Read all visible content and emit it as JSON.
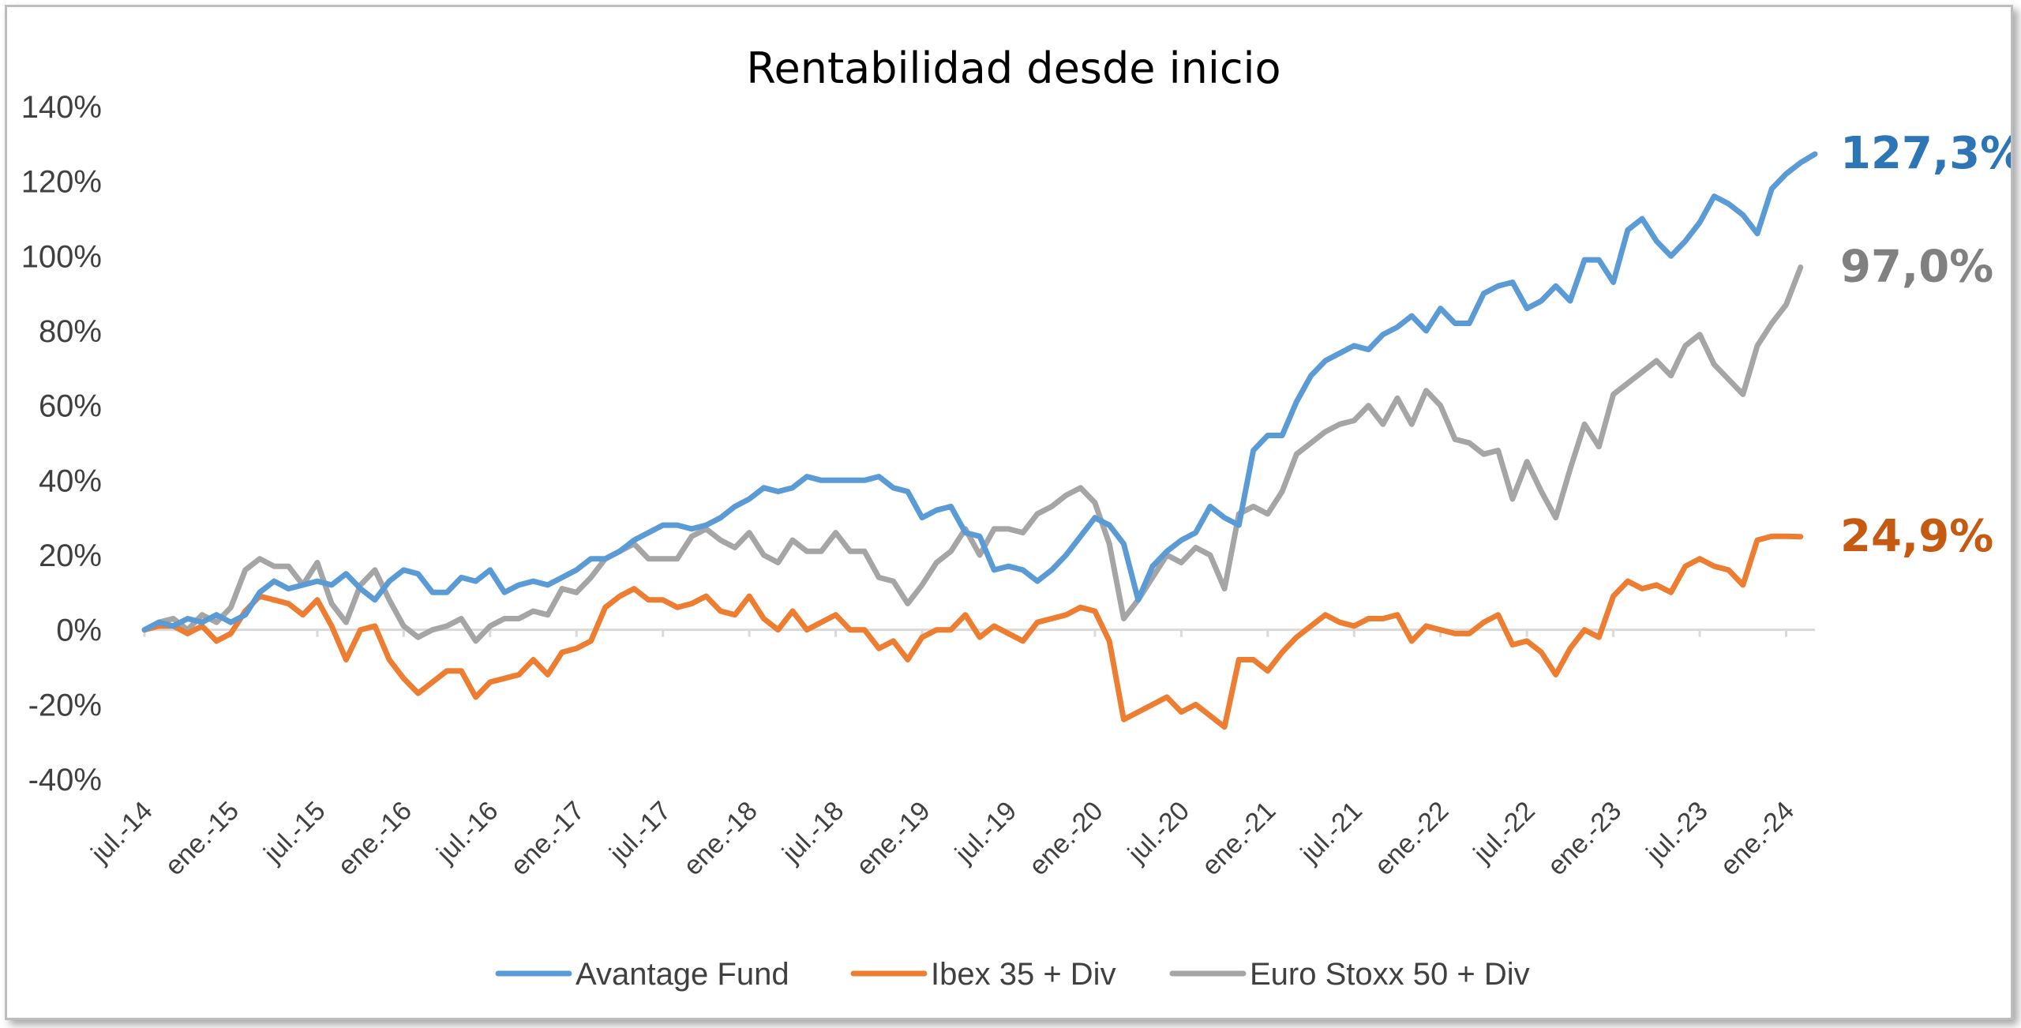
{
  "chart_data": {
    "type": "line",
    "title": "Rentabilidad desde inicio",
    "xlabel": "",
    "ylabel": "",
    "ylim": [
      -40,
      140
    ],
    "y_ticks": [
      "140%",
      "120%",
      "100%",
      "80%",
      "60%",
      "40%",
      "20%",
      "0%",
      "-20%",
      "-40%"
    ],
    "y_tick_values": [
      140,
      120,
      100,
      80,
      60,
      40,
      20,
      0,
      -20,
      -40
    ],
    "x_ticks": [
      "jul.-14",
      "ene.-15",
      "jul.-15",
      "ene.-16",
      "jul.-16",
      "ene.-17",
      "jul.-17",
      "ene.-18",
      "jul.-18",
      "ene.-19",
      "jul.-19",
      "ene.-20",
      "jul.-20",
      "ene.-21",
      "jul.-21",
      "ene.-22",
      "jul.-22",
      "ene.-23",
      "jul.-23",
      "ene.-24"
    ],
    "x_tick_index": [
      0,
      6,
      12,
      18,
      24,
      30,
      36,
      42,
      48,
      54,
      60,
      66,
      72,
      78,
      84,
      90,
      96,
      102,
      108,
      114
    ],
    "x_start": "jul.-14",
    "x_end": "mar.-24",
    "grid": false,
    "legend_position": "bottom",
    "series": [
      {
        "name": "Avantage Fund",
        "color": "#5b9bd5",
        "end_label": "127,3%",
        "end_label_color": "#2e75b6",
        "values": [
          0,
          2,
          1,
          3,
          2,
          4,
          2,
          4,
          10,
          13,
          11,
          12,
          13,
          12,
          15,
          11,
          8,
          13,
          16,
          15,
          10,
          10,
          14,
          13,
          16,
          10,
          12,
          13,
          12,
          14,
          16,
          19,
          19,
          21,
          24,
          26,
          28,
          28,
          27,
          28,
          30,
          33,
          35,
          38,
          37,
          38,
          41,
          40,
          40,
          40,
          40,
          41,
          38,
          37,
          30,
          32,
          33,
          26,
          25,
          16,
          17,
          16,
          13,
          16,
          20,
          25,
          30,
          28,
          23,
          8,
          17,
          21,
          24,
          26,
          33,
          30,
          28,
          48,
          52,
          52,
          61,
          68,
          72,
          74,
          76,
          75,
          79,
          81,
          84,
          80,
          86,
          82,
          82,
          90,
          92,
          93,
          86,
          88,
          92,
          88,
          99,
          99,
          93,
          107,
          110,
          104,
          100,
          104,
          109,
          116,
          114,
          111,
          106,
          118,
          122,
          125,
          127.3
        ]
      },
      {
        "name": "Ibex 35 + Div",
        "color": "#ed7d31",
        "end_label": "24,9%",
        "end_label_color": "#c55a11",
        "values": [
          0,
          1,
          1,
          -1,
          1,
          -3,
          -1,
          5,
          9,
          8,
          7,
          4,
          8,
          1,
          -8,
          0,
          1,
          -8,
          -13,
          -17,
          -14,
          -11,
          -11,
          -18,
          -14,
          -13,
          -12,
          -8,
          -12,
          -6,
          -5,
          -3,
          6,
          9,
          11,
          8,
          8,
          6,
          7,
          9,
          5,
          4,
          9,
          3,
          0,
          5,
          0,
          2,
          4,
          0,
          0,
          -5,
          -3,
          -8,
          -2,
          0,
          0,
          4,
          -2,
          1,
          -1,
          -3,
          2,
          3,
          4,
          6,
          5,
          -3,
          -24,
          -22,
          -20,
          -18,
          -22,
          -20,
          -23,
          -26,
          -8,
          -8,
          -11,
          -6,
          -2,
          1,
          4,
          2,
          1,
          3,
          3,
          4,
          -3,
          1,
          0,
          -1,
          -1,
          2,
          4,
          -4,
          -3,
          -6,
          -12,
          -5,
          0,
          -2,
          9,
          13,
          11,
          12,
          10,
          17,
          19,
          17,
          16,
          12,
          24,
          25,
          25,
          24.9
        ]
      },
      {
        "name": "Euro Stoxx 50 + Div",
        "color": "#a5a5a5",
        "end_label": "97,0%",
        "end_label_color": "#808080",
        "values": [
          0,
          2,
          3,
          0,
          4,
          2,
          6,
          16,
          19,
          17,
          17,
          12,
          18,
          7,
          2,
          12,
          16,
          8,
          1,
          -2,
          0,
          1,
          3,
          -3,
          1,
          3,
          3,
          5,
          4,
          11,
          10,
          14,
          19,
          21,
          23,
          19,
          19,
          19,
          25,
          27,
          24,
          22,
          26,
          20,
          18,
          24,
          21,
          21,
          26,
          21,
          21,
          14,
          13,
          7,
          12,
          18,
          21,
          27,
          20,
          27,
          27,
          26,
          31,
          33,
          36,
          38,
          34,
          23,
          3,
          8,
          14,
          20,
          18,
          22,
          20,
          11,
          31,
          33,
          31,
          37,
          47,
          50,
          53,
          55,
          56,
          60,
          55,
          62,
          55,
          64,
          60,
          51,
          50,
          47,
          48,
          35,
          45,
          37,
          30,
          43,
          55,
          49,
          63,
          66,
          69,
          72,
          68,
          76,
          79,
          71,
          67,
          63,
          76,
          82,
          87,
          97.0
        ]
      }
    ]
  }
}
